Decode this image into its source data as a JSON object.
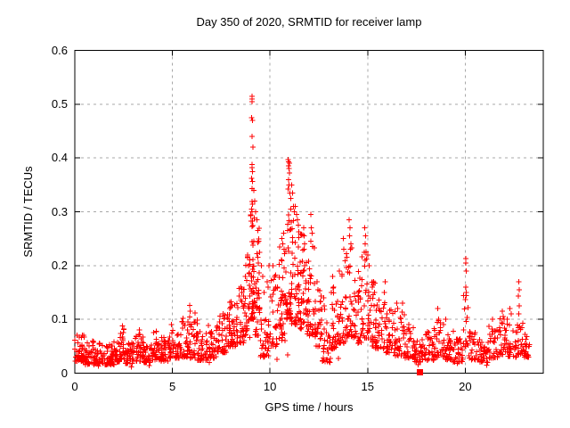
{
  "chart_data": {
    "type": "scatter",
    "title": "Day 350 of 2020, SRMTID for receiver lamp",
    "xlabel": "GPS time / hours",
    "ylabel": "SRMTID / TECUs",
    "xlim": [
      0,
      24
    ],
    "ylim": [
      0,
      0.6
    ],
    "xticks": [
      0,
      5,
      10,
      15,
      20
    ],
    "xtick_labels": [
      "0",
      "5",
      "10",
      "15",
      "20"
    ],
    "yticks": [
      0,
      0.1,
      0.2,
      0.3,
      0.4,
      0.5,
      0.6
    ],
    "ytick_labels": [
      "0",
      "0.1",
      "0.2",
      "0.3",
      "0.4",
      "0.5",
      "0.6"
    ],
    "grid": true,
    "legend": false,
    "marker": {
      "shape": "plus",
      "color": "#ff0000",
      "size": 7
    },
    "special_point": {
      "shape": "filled-square",
      "x": 17.67,
      "y": 0.002,
      "color": "#ff0000"
    },
    "seed": 1350,
    "density_bands": [
      [
        0.0,
        0.5,
        0.022,
        0.075,
        46
      ],
      [
        0.5,
        1.0,
        0.016,
        0.06,
        42
      ],
      [
        1.0,
        1.5,
        0.018,
        0.056,
        42
      ],
      [
        1.5,
        2.0,
        0.015,
        0.055,
        42
      ],
      [
        2.0,
        2.3,
        0.02,
        0.06,
        26
      ],
      [
        2.3,
        2.6,
        0.025,
        0.085,
        26
      ],
      [
        2.6,
        3.1,
        0.018,
        0.06,
        40
      ],
      [
        3.1,
        3.5,
        0.022,
        0.078,
        32
      ],
      [
        3.5,
        4.0,
        0.02,
        0.065,
        40
      ],
      [
        4.0,
        4.4,
        0.025,
        0.078,
        32
      ],
      [
        4.4,
        4.8,
        0.022,
        0.07,
        32
      ],
      [
        4.8,
        5.1,
        0.028,
        0.088,
        26
      ],
      [
        5.1,
        5.4,
        0.028,
        0.072,
        24
      ],
      [
        5.4,
        5.8,
        0.03,
        0.098,
        30
      ],
      [
        5.8,
        6.3,
        0.028,
        0.112,
        38
      ],
      [
        6.3,
        6.8,
        0.024,
        0.08,
        38
      ],
      [
        6.8,
        7.3,
        0.028,
        0.09,
        38
      ],
      [
        7.3,
        7.8,
        0.038,
        0.108,
        38
      ],
      [
        7.8,
        8.3,
        0.05,
        0.133,
        42
      ],
      [
        8.3,
        8.7,
        0.055,
        0.16,
        36
      ],
      [
        8.7,
        9.0,
        0.065,
        0.22,
        32
      ],
      [
        9.0,
        9.2,
        0.1,
        0.33,
        40
      ],
      [
        9.2,
        9.5,
        0.07,
        0.27,
        36
      ],
      [
        9.5,
        10.0,
        0.03,
        0.11,
        32
      ],
      [
        10.0,
        10.45,
        0.05,
        0.19,
        30
      ],
      [
        10.45,
        10.8,
        0.06,
        0.24,
        38
      ],
      [
        10.8,
        11.1,
        0.1,
        0.34,
        46
      ],
      [
        11.1,
        11.5,
        0.09,
        0.3,
        46
      ],
      [
        11.5,
        11.9,
        0.08,
        0.26,
        40
      ],
      [
        11.9,
        12.3,
        0.07,
        0.24,
        38
      ],
      [
        12.3,
        12.65,
        0.05,
        0.18,
        30
      ],
      [
        12.65,
        13.1,
        0.02,
        0.12,
        30
      ],
      [
        13.1,
        13.5,
        0.045,
        0.16,
        30
      ],
      [
        13.5,
        13.9,
        0.055,
        0.22,
        32
      ],
      [
        13.9,
        14.3,
        0.065,
        0.25,
        36
      ],
      [
        14.3,
        14.7,
        0.055,
        0.19,
        32
      ],
      [
        14.7,
        15.05,
        0.065,
        0.24,
        28
      ],
      [
        15.05,
        15.4,
        0.05,
        0.17,
        30
      ],
      [
        15.4,
        15.9,
        0.045,
        0.14,
        36
      ],
      [
        15.9,
        16.4,
        0.038,
        0.12,
        36
      ],
      [
        16.4,
        16.9,
        0.032,
        0.12,
        36
      ],
      [
        16.9,
        17.4,
        0.028,
        0.088,
        34
      ],
      [
        17.4,
        17.9,
        0.02,
        0.068,
        30
      ],
      [
        17.9,
        18.4,
        0.024,
        0.078,
        32
      ],
      [
        18.4,
        18.9,
        0.03,
        0.098,
        34
      ],
      [
        18.9,
        19.4,
        0.025,
        0.08,
        32
      ],
      [
        19.4,
        19.9,
        0.02,
        0.068,
        30
      ],
      [
        19.9,
        20.15,
        0.05,
        0.145,
        16
      ],
      [
        20.15,
        20.7,
        0.025,
        0.078,
        32
      ],
      [
        20.7,
        21.2,
        0.02,
        0.068,
        30
      ],
      [
        21.2,
        21.7,
        0.028,
        0.088,
        30
      ],
      [
        21.7,
        22.2,
        0.035,
        0.105,
        32
      ],
      [
        22.2,
        22.7,
        0.03,
        0.09,
        30
      ],
      [
        22.7,
        23.0,
        0.035,
        0.1,
        20
      ],
      [
        23.0,
        23.35,
        0.03,
        0.08,
        26
      ]
    ],
    "peak_points": [
      [
        9.07,
        0.515
      ],
      [
        9.08,
        0.51
      ],
      [
        9.09,
        0.505
      ],
      [
        9.06,
        0.475
      ],
      [
        9.1,
        0.47
      ],
      [
        9.08,
        0.44
      ],
      [
        9.12,
        0.42
      ],
      [
        9.07,
        0.388
      ],
      [
        9.09,
        0.382
      ],
      [
        9.11,
        0.375
      ],
      [
        9.05,
        0.362
      ],
      [
        9.1,
        0.356
      ],
      [
        9.08,
        0.343
      ],
      [
        9.1,
        0.314
      ],
      [
        9.06,
        0.305
      ],
      [
        9.09,
        0.3
      ],
      [
        9.11,
        0.283
      ],
      [
        9.07,
        0.273
      ],
      [
        9.18,
        0.34
      ],
      [
        9.22,
        0.32
      ],
      [
        9.27,
        0.3
      ],
      [
        9.32,
        0.285
      ],
      [
        9.37,
        0.265
      ],
      [
        9.42,
        0.245
      ],
      [
        9.47,
        0.225
      ],
      [
        9.55,
        0.2
      ],
      [
        9.62,
        0.18
      ],
      [
        9.7,
        0.15
      ],
      [
        9.85,
        0.17
      ],
      [
        9.9,
        0.16
      ],
      [
        9.95,
        0.2
      ],
      [
        10.15,
        0.2
      ],
      [
        10.25,
        0.18
      ],
      [
        10.3,
        0.16
      ],
      [
        10.6,
        0.25
      ],
      [
        10.65,
        0.24
      ],
      [
        10.7,
        0.26
      ],
      [
        10.72,
        0.23
      ],
      [
        10.93,
        0.397
      ],
      [
        10.96,
        0.393
      ],
      [
        10.99,
        0.39
      ],
      [
        10.94,
        0.385
      ],
      [
        10.97,
        0.38
      ],
      [
        11.0,
        0.372
      ],
      [
        10.95,
        0.36
      ],
      [
        10.98,
        0.35
      ],
      [
        10.92,
        0.342
      ],
      [
        11.02,
        0.335
      ],
      [
        11.06,
        0.325
      ],
      [
        11.1,
        0.35
      ],
      [
        11.15,
        0.335
      ],
      [
        11.2,
        0.31
      ],
      [
        11.25,
        0.3
      ],
      [
        11.3,
        0.31
      ],
      [
        11.35,
        0.295
      ],
      [
        11.4,
        0.285
      ],
      [
        11.45,
        0.275
      ],
      [
        11.72,
        0.27
      ],
      [
        11.75,
        0.255
      ],
      [
        11.78,
        0.24
      ],
      [
        12.1,
        0.295
      ],
      [
        12.12,
        0.27
      ],
      [
        12.15,
        0.26
      ],
      [
        12.08,
        0.245
      ],
      [
        12.18,
        0.235
      ],
      [
        12.4,
        0.17
      ],
      [
        12.45,
        0.155
      ],
      [
        12.75,
        0.14
      ],
      [
        12.78,
        0.125
      ],
      [
        13.15,
        0.15
      ],
      [
        13.2,
        0.18
      ],
      [
        13.25,
        0.16
      ],
      [
        13.75,
        0.25
      ],
      [
        13.78,
        0.23
      ],
      [
        14.05,
        0.285
      ],
      [
        14.1,
        0.27
      ],
      [
        14.08,
        0.255
      ],
      [
        14.15,
        0.24
      ],
      [
        14.12,
        0.23
      ],
      [
        14.82,
        0.225
      ],
      [
        14.85,
        0.27
      ],
      [
        14.88,
        0.24
      ],
      [
        14.9,
        0.255
      ],
      [
        15.02,
        0.22
      ],
      [
        15.08,
        0.2
      ],
      [
        15.3,
        0.17
      ],
      [
        15.35,
        0.15
      ],
      [
        15.85,
        0.15
      ],
      [
        15.9,
        0.17
      ],
      [
        16.5,
        0.13
      ],
      [
        16.55,
        0.12
      ],
      [
        16.8,
        0.13
      ],
      [
        17.1,
        0.09
      ],
      [
        18.6,
        0.12
      ],
      [
        18.65,
        0.1
      ],
      [
        19.0,
        0.1
      ],
      [
        20.02,
        0.213
      ],
      [
        20.03,
        0.205
      ],
      [
        20.05,
        0.19
      ],
      [
        20.04,
        0.16
      ],
      [
        20.06,
        0.15
      ],
      [
        21.4,
        0.1
      ],
      [
        21.9,
        0.115
      ],
      [
        21.95,
        0.105
      ],
      [
        22.0,
        0.1
      ],
      [
        22.3,
        0.12
      ],
      [
        22.35,
        0.11
      ],
      [
        22.74,
        0.17
      ],
      [
        22.76,
        0.155
      ],
      [
        22.73,
        0.143
      ],
      [
        22.77,
        0.125
      ],
      [
        22.75,
        0.11
      ],
      [
        2.45,
        0.088
      ],
      [
        2.5,
        0.082
      ],
      [
        3.3,
        0.08
      ],
      [
        4.95,
        0.09
      ],
      [
        5.5,
        0.095
      ],
      [
        5.55,
        0.102
      ],
      [
        5.88,
        0.126
      ],
      [
        5.92,
        0.115
      ],
      [
        6.15,
        0.112
      ],
      [
        7.6,
        0.11
      ],
      [
        7.95,
        0.12
      ],
      [
        8.0,
        0.133
      ],
      [
        8.05,
        0.125
      ],
      [
        8.5,
        0.16
      ],
      [
        8.55,
        0.15
      ],
      [
        8.85,
        0.22
      ],
      [
        8.9,
        0.2
      ],
      [
        1.2,
        0.013
      ],
      [
        2.9,
        0.012
      ],
      [
        3.8,
        0.014
      ],
      [
        6.9,
        0.02
      ],
      [
        10.35,
        0.026
      ],
      [
        10.9,
        0.034
      ],
      [
        12.9,
        0.025
      ],
      [
        13.5,
        0.027
      ],
      [
        17.6,
        0.016
      ],
      [
        19.6,
        0.018
      ],
      [
        21.1,
        0.015
      ],
      [
        23.25,
        0.03
      ]
    ]
  },
  "colors": {
    "background": "#ffffff",
    "axis": "#000000",
    "grid": "#a8a8a8",
    "text": "#000000",
    "marker": "#ff0000"
  }
}
